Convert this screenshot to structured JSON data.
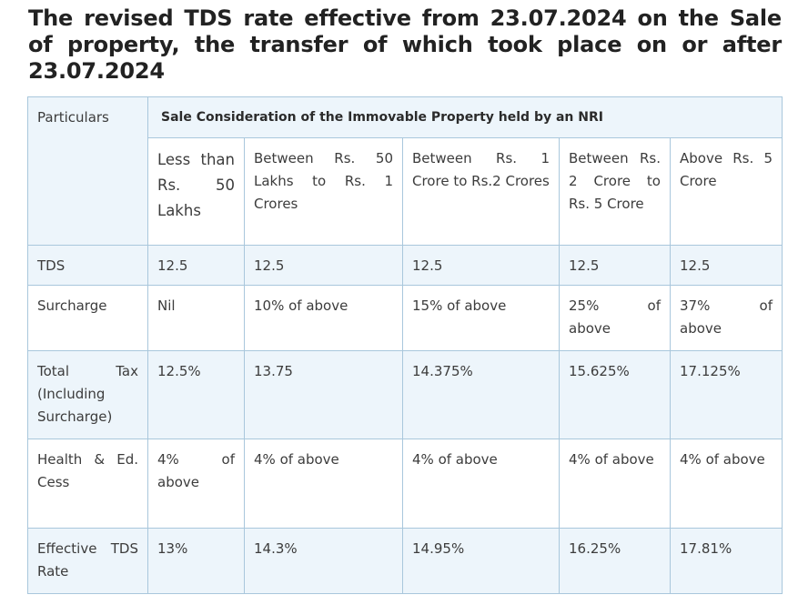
{
  "heading": "The revised TDS rate effective from 23.07.2024 on the Sale of property, the transfer of which took place on or after 23.07.2024",
  "table": {
    "particulars_label": "Particulars",
    "merged_header": "Sale Consideration of the Immovable Property held by an NRI",
    "columns": [
      "Less than Rs. 50 Lakhs",
      "Between Rs. 50 Lakhs to Rs. 1 Crores",
      "Between Rs. 1 Crore to Rs.2 Crores",
      "Between Rs. 2 Crore to Rs. 5 Crore",
      "Above Rs. 5 Crore"
    ],
    "rows": [
      {
        "label": "TDS",
        "cells": [
          "12.5",
          "12.5",
          "12.5",
          "12.5",
          "12.5"
        ]
      },
      {
        "label": "Surcharge",
        "cells": [
          "Nil",
          "10% of above",
          "15% of above",
          "25% of above",
          "37% of above"
        ]
      },
      {
        "label": "Total Tax (Including Surcharge)",
        "cells": [
          "12.5%",
          "13.75",
          "14.375%",
          "15.625%",
          "17.125%"
        ]
      },
      {
        "label": "Health & Ed. Cess",
        "cells": [
          "4% of above",
          "4% of above",
          "4% of above",
          "4% of above",
          "4% of above"
        ]
      },
      {
        "label": "Effective TDS Rate",
        "cells": [
          "13%",
          "14.3%",
          "14.95%",
          "16.25%",
          "17.81%"
        ]
      }
    ]
  },
  "colors": {
    "border": "#a9c7dc",
    "shaded_row": "#edf5fb",
    "heading_text": "#222222"
  }
}
